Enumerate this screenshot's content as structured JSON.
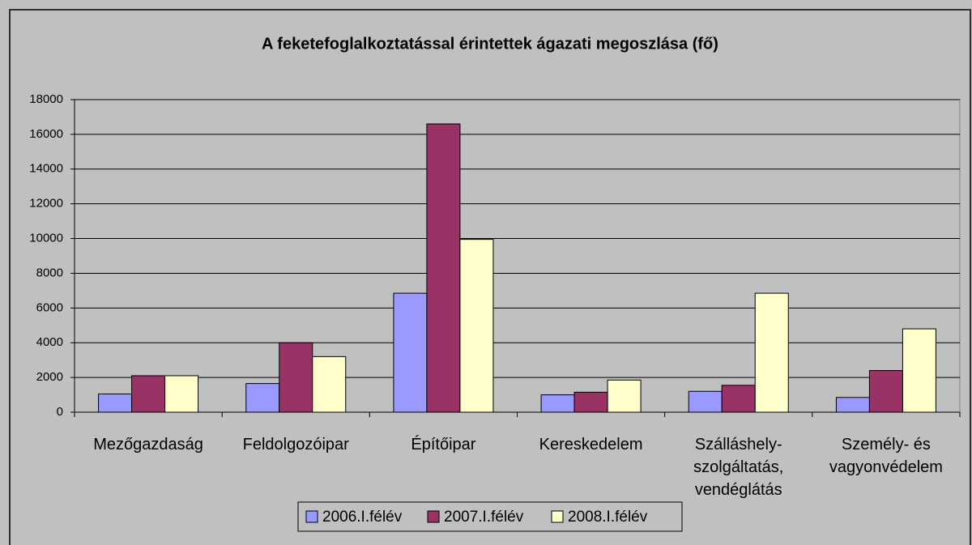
{
  "chart_data": {
    "type": "bar",
    "title": "A feketefoglalkoztatással érintettek ágazati megoszlása (fő)",
    "categories": [
      "Mezőgazdaság",
      "Feldolgozóipar",
      "Építőipar",
      "Kereskedelem",
      "Szálláshely-szolgáltatás, vendéglátás",
      "Személy- és vagyonvédelem"
    ],
    "series": [
      {
        "name": "2006.I.félév",
        "color": "#9999ff",
        "values": [
          1050,
          1650,
          6850,
          1000,
          1200,
          850
        ]
      },
      {
        "name": "2007.I.félév",
        "color": "#993366",
        "values": [
          2100,
          4000,
          16600,
          1150,
          1550,
          2400
        ]
      },
      {
        "name": "2008.I.félév",
        "color": "#ffffcc",
        "values": [
          2100,
          3200,
          9950,
          1850,
          6850,
          4800
        ]
      }
    ],
    "ylim": [
      0,
      18000
    ],
    "yticks": [
      0,
      2000,
      4000,
      6000,
      8000,
      10000,
      12000,
      14000,
      16000,
      18000
    ],
    "grid": true,
    "legend": "bottom"
  }
}
